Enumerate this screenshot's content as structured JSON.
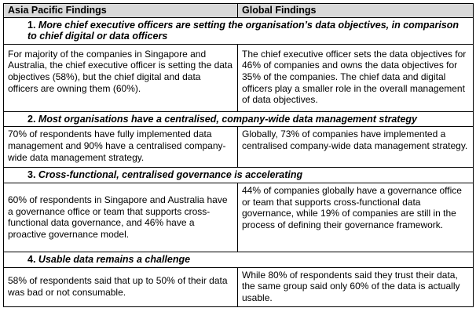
{
  "headers": {
    "left": "Asia Pacific Findings",
    "right": "Global Findings"
  },
  "sections": [
    {
      "number": "1.",
      "title": "More chief executive officers are setting the organisation’s data objectives, in comparison to chief digital or data officers",
      "asia": "For majority of the companies in Singapore and Australia, the chief executive officer is setting the data objectives (58%), but the chief digital and data officers are owning them (60%).",
      "global": "The chief executive officer sets the data objectives for 46% of companies and owns the data objectives for 35% of the companies. The chief data and digital officers play a smaller role in the overall management of data objectives."
    },
    {
      "number": "2.",
      "title": "Most organisations have a centralised, company-wide data management strategy",
      "asia": "70% of respondents have fully implemented data management and 90% have a centralised company-wide data management strategy.",
      "global": "Globally, 73% of companies have implemented a centralised company-wide data management strategy."
    },
    {
      "number": "3.",
      "title": "Cross-functional, centralised governance is accelerating",
      "asia": "60% of respondents in Singapore and Australia have a governance office or team that supports cross-functional data governance, and 46% have a proactive governance model.",
      "global": "44% of companies globally have a governance office or team that supports cross-functional data governance, while 19% of companies are still in the process of defining their governance framework."
    },
    {
      "number": "4.",
      "title": "Usable data remains a challenge",
      "asia": "58% of respondents said that up to 50% of their data was bad or not consumable.",
      "global": "While 80% of respondents said they trust their data, the same group said only 60% of the data is actually usable."
    }
  ]
}
